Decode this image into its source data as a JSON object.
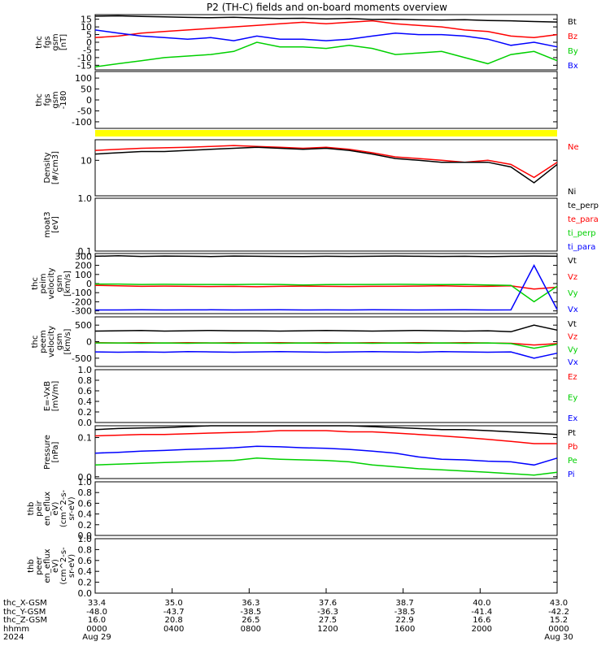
{
  "title": "P2 (TH-C) fields and on-board moments overview",
  "colors": {
    "black": "#000000",
    "red": "#ff0000",
    "green": "#00d000",
    "blue": "#0000ff",
    "yellow": "#ffff00"
  },
  "chart_data": [
    {
      "type": "line",
      "ylabel": [
        "thc",
        "fgs",
        "gsm",
        "[nT]"
      ],
      "yticks": [
        15,
        10,
        5,
        0,
        -5,
        -10,
        -15
      ],
      "ylim": [
        -18,
        18
      ],
      "series": [
        {
          "name": "Bt",
          "color": "black",
          "values": [
            17,
            17.2,
            16.8,
            16.5,
            16.2,
            16,
            16.3,
            15.8,
            15.5,
            15.6,
            15.2,
            15.5,
            14.8,
            15,
            14.6,
            14.5,
            14.7,
            14.2,
            14,
            13.5,
            13.2
          ]
        },
        {
          "name": "Bz",
          "color": "red",
          "values": [
            3,
            4,
            6,
            7,
            8,
            9,
            10,
            11,
            12,
            13,
            12,
            13,
            14,
            12,
            11,
            10,
            8,
            7,
            4,
            3,
            5
          ]
        },
        {
          "name": "By",
          "color": "green",
          "values": [
            -16,
            -14,
            -12,
            -10,
            -9,
            -8,
            -6,
            0,
            -3,
            -3,
            -4,
            -2,
            -4,
            -8,
            -7,
            -6,
            -10,
            -14,
            -8,
            -6,
            -12
          ]
        },
        {
          "name": "Bx",
          "color": "blue",
          "values": [
            8,
            6,
            4,
            3,
            2,
            3,
            1,
            4,
            2,
            2,
            1,
            2,
            4,
            6,
            5,
            5,
            4,
            2,
            -2,
            0,
            -3
          ]
        }
      ]
    },
    {
      "type": "line",
      "ylabel": [
        "thc",
        "fgs",
        "gsm",
        "-180"
      ],
      "yticks": [
        100,
        50,
        0,
        -50,
        -100
      ],
      "ylim": [
        -130,
        130
      ],
      "series": []
    },
    {
      "type": "bar",
      "fill": "yellow",
      "note_band": true
    },
    {
      "type": "line",
      "ylabel": [
        "Density",
        "[#/cm3]"
      ],
      "log": true,
      "yticks": [
        10
      ],
      "ylim": [
        1.5,
        30
      ],
      "series": [
        {
          "name": "Ne",
          "color": "red",
          "values": [
            17,
            18,
            19,
            19.5,
            20,
            21,
            22,
            21,
            20,
            19,
            20,
            18,
            15,
            12,
            11,
            10,
            9,
            10,
            8,
            4,
            9
          ]
        },
        {
          "name": "Ni",
          "color": "black",
          "values": [
            14,
            15,
            16,
            16,
            17,
            18,
            19,
            20,
            19,
            18,
            19,
            17,
            14,
            11,
            10,
            9,
            9,
            9,
            7,
            3,
            8
          ]
        }
      ]
    },
    {
      "type": "line",
      "ylabel": [
        "moat3",
        "[eV]"
      ],
      "log": true,
      "yticks": [
        1.0,
        0.1
      ],
      "ylim": [
        0.1,
        1.0
      ],
      "series": [
        {
          "name": "te_perp",
          "color": "black",
          "values": []
        },
        {
          "name": "te_para",
          "color": "red",
          "values": []
        },
        {
          "name": "ti_perp",
          "color": "green",
          "values": []
        },
        {
          "name": "ti_para",
          "color": "blue",
          "values": []
        }
      ]
    },
    {
      "type": "line",
      "ylabel": [
        "thc",
        "peim",
        "velocity",
        "gsm",
        "[km/s]"
      ],
      "yticks": [
        300,
        200,
        100,
        0,
        -100,
        -200,
        -300
      ],
      "ylim": [
        -330,
        330
      ],
      "series": [
        {
          "name": "Vt",
          "color": "black",
          "values": [
            300,
            305,
            298,
            302,
            300,
            297,
            302,
            300,
            298,
            296,
            300,
            298,
            300,
            302,
            300,
            298,
            300,
            295,
            300,
            302,
            300
          ]
        },
        {
          "name": "Vz",
          "color": "red",
          "values": [
            -20,
            -25,
            -30,
            -28,
            -30,
            -32,
            -30,
            -35,
            -30,
            -28,
            -30,
            -32,
            -30,
            -30,
            -28,
            -25,
            -30,
            -30,
            -25,
            -60,
            -40
          ]
        },
        {
          "name": "Vy",
          "color": "green",
          "values": [
            -5,
            -5,
            -10,
            -8,
            -10,
            -10,
            -12,
            -8,
            -10,
            -15,
            -12,
            -10,
            -10,
            -8,
            -10,
            -12,
            -10,
            -15,
            -20,
            -200,
            -30
          ]
        },
        {
          "name": "Vx",
          "color": "blue",
          "values": [
            -290,
            -290,
            -288,
            -290,
            -289,
            -288,
            -290,
            -289,
            -288,
            -290,
            -289,
            -290,
            -288,
            -289,
            -290,
            -289,
            -288,
            -290,
            -289,
            200,
            -285
          ]
        }
      ]
    },
    {
      "type": "line",
      "ylabel": [
        "thc",
        "peem",
        "velocity",
        "gsm",
        "[km/s]"
      ],
      "yticks": [
        500,
        0,
        -500
      ],
      "ylim": [
        -750,
        750
      ],
      "series": [
        {
          "name": "Vt",
          "color": "black",
          "values": [
            320,
            330,
            340,
            320,
            330,
            340,
            330,
            330,
            320,
            330,
            340,
            330,
            320,
            330,
            340,
            330,
            320,
            330,
            300,
            500,
            350
          ]
        },
        {
          "name": "Vz",
          "color": "red",
          "values": [
            -30,
            -40,
            -30,
            -40,
            -30,
            -40,
            -30,
            -40,
            -30,
            -40,
            -30,
            -40,
            -30,
            -40,
            -30,
            -40,
            -30,
            -40,
            -50,
            -100,
            -60
          ]
        },
        {
          "name": "Vy",
          "color": "green",
          "values": [
            -40,
            -40,
            -50,
            -40,
            -50,
            -40,
            -50,
            -40,
            -50,
            -40,
            -50,
            -40,
            -50,
            -40,
            -50,
            -40,
            -50,
            -40,
            -60,
            -200,
            -80
          ]
        },
        {
          "name": "Vx",
          "color": "blue",
          "values": [
            -310,
            -320,
            -310,
            -320,
            -300,
            -310,
            -320,
            -310,
            -300,
            -310,
            -320,
            -310,
            -300,
            -310,
            -320,
            -300,
            -310,
            -320,
            -310,
            -500,
            -350
          ]
        }
      ]
    },
    {
      "type": "line",
      "ylabel": [
        "E=-VxB",
        "[mV/m]"
      ],
      "yticks": [
        1.0,
        0.8,
        0.6,
        0.4,
        0.2,
        0.0
      ],
      "ylim": [
        0.0,
        1.0
      ],
      "series": [
        {
          "name": "Ez",
          "color": "red",
          "values": []
        },
        {
          "name": "Ey",
          "color": "green",
          "values": []
        },
        {
          "name": "Ex",
          "color": "blue",
          "values": []
        }
      ]
    },
    {
      "type": "line",
      "ylabel": [
        "Pressure",
        "[nPa]"
      ],
      "log": true,
      "yticks": [
        0.1,
        0.01
      ],
      "ylim": [
        0.009,
        0.2
      ],
      "series": [
        {
          "name": "Pt",
          "color": "black",
          "values": [
            0.16,
            0.17,
            0.175,
            0.18,
            0.19,
            0.2,
            0.2,
            0.2,
            0.21,
            0.2,
            0.21,
            0.2,
            0.19,
            0.18,
            0.17,
            0.16,
            0.16,
            0.15,
            0.14,
            0.13,
            0.12
          ]
        },
        {
          "name": "Pb",
          "color": "red",
          "values": [
            0.11,
            0.115,
            0.12,
            0.12,
            0.125,
            0.13,
            0.135,
            0.14,
            0.15,
            0.15,
            0.15,
            0.14,
            0.14,
            0.13,
            0.12,
            0.11,
            0.1,
            0.09,
            0.08,
            0.07,
            0.07
          ]
        },
        {
          "name": "Pe",
          "color": "green",
          "values": [
            0.02,
            0.021,
            0.022,
            0.023,
            0.024,
            0.025,
            0.026,
            0.03,
            0.028,
            0.027,
            0.026,
            0.024,
            0.02,
            0.018,
            0.016,
            0.015,
            0.014,
            0.013,
            0.012,
            0.011,
            0.013
          ]
        },
        {
          "name": "Pi",
          "color": "blue",
          "values": [
            0.04,
            0.042,
            0.045,
            0.047,
            0.05,
            0.052,
            0.055,
            0.06,
            0.058,
            0.055,
            0.053,
            0.05,
            0.045,
            0.04,
            0.032,
            0.028,
            0.027,
            0.025,
            0.024,
            0.02,
            0.03
          ]
        }
      ]
    },
    {
      "type": "line",
      "ylabel": [
        "thb",
        "peir",
        "en_eflux",
        "eV)",
        "(cm^2-s-",
        "sr-eV)"
      ],
      "yticks": [
        1.0,
        0.8,
        0.6,
        0.4,
        0.2,
        0.0
      ],
      "ylim": [
        0.0,
        1.0
      ],
      "series": []
    },
    {
      "type": "line",
      "ylabel": [
        "thb",
        "peer",
        "en_eflux",
        "eV)",
        "(cm^2-s-",
        "sr-eV)"
      ],
      "yticks": [
        1.0,
        0.8,
        0.6,
        0.4,
        0.2,
        0.0
      ],
      "ylim": [
        0.0,
        1.0
      ],
      "series": []
    }
  ],
  "xaxis": {
    "row_labels": [
      "thc_X-GSM",
      "thc_Y-GSM",
      "thc_Z-GSM",
      "hhmm",
      "2024"
    ],
    "columns": [
      [
        "33.4",
        "-48.0",
        "16.0",
        "0000",
        "Aug 29"
      ],
      [
        "35.0",
        "-43.7",
        "20.8",
        "0400",
        ""
      ],
      [
        "36.3",
        "-38.5",
        "26.5",
        "0800",
        ""
      ],
      [
        "37.6",
        "-36.3",
        "27.5",
        "1200",
        ""
      ],
      [
        "38.7",
        "-38.5",
        "22.9",
        "1600",
        ""
      ],
      [
        "40.0",
        "-41.4",
        "16.6",
        "2000",
        ""
      ],
      [
        "43.0",
        "-42.2",
        "15.2",
        "0000",
        "Aug 30"
      ]
    ]
  }
}
